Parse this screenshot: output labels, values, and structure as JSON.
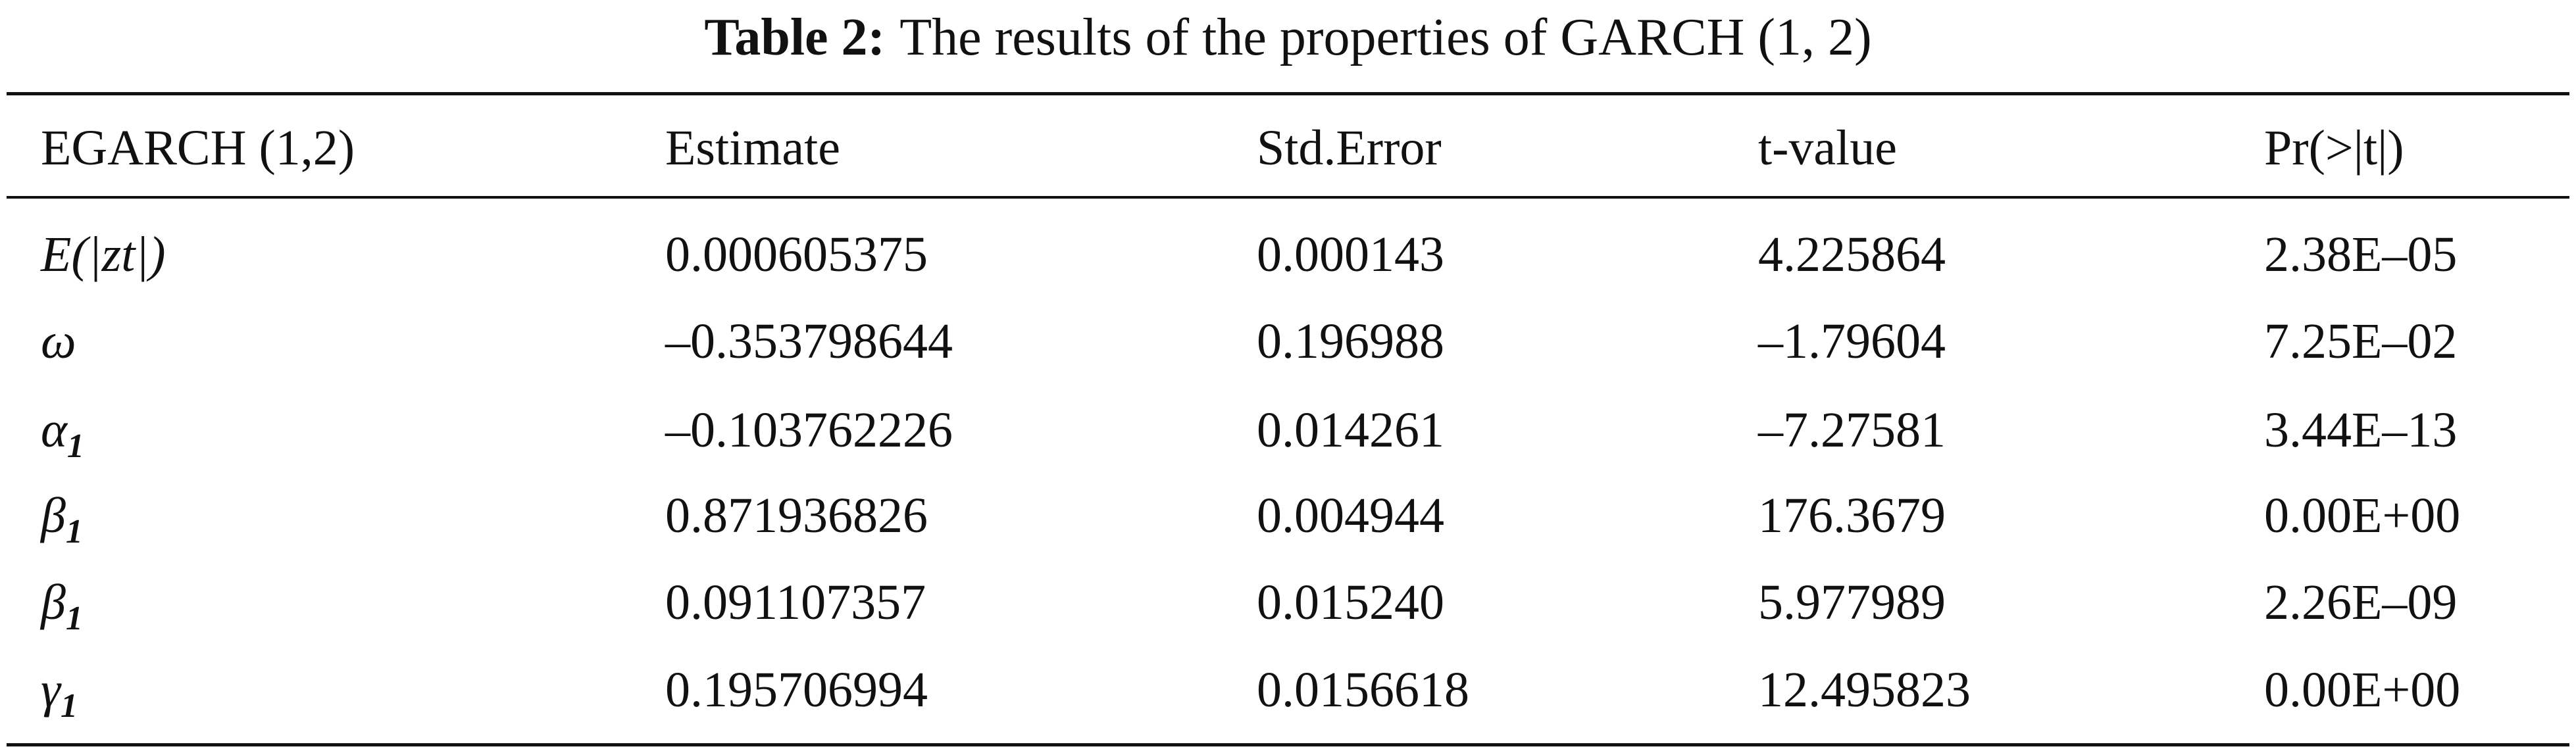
{
  "caption": {
    "label": "Table 2:",
    "text": "The results of the properties of GARCH (1, 2)"
  },
  "table": {
    "header": [
      "EGARCH (1,2)",
      "Estimate",
      "Std.Error",
      "t-value",
      "Pr(>|t|)"
    ],
    "rows": [
      [
        {
          "symbol": "E(|zt|)"
        },
        "0.000605375",
        "0.000143",
        "4.225864",
        "2.38E–05"
      ],
      [
        {
          "symbol": "ω"
        },
        "–0.353798644",
        "0.196988",
        "–1.79604",
        "7.25E–02"
      ],
      [
        {
          "symbol": "α",
          "sub": "1"
        },
        "–0.103762226",
        "0.014261",
        "–7.27581",
        "3.44E–13"
      ],
      [
        {
          "symbol": "β",
          "sub": "1"
        },
        "0.871936826",
        "0.004944",
        "176.3679",
        "0.00E+00"
      ],
      [
        {
          "symbol": "β",
          "sub": "1"
        },
        "0.091107357",
        "0.015240",
        "5.977989",
        "2.26E–09"
      ],
      [
        {
          "symbol": "γ",
          "sub": "1"
        },
        "0.195706994",
        "0.0156618",
        "12.495823",
        "0.00E+00"
      ]
    ]
  }
}
